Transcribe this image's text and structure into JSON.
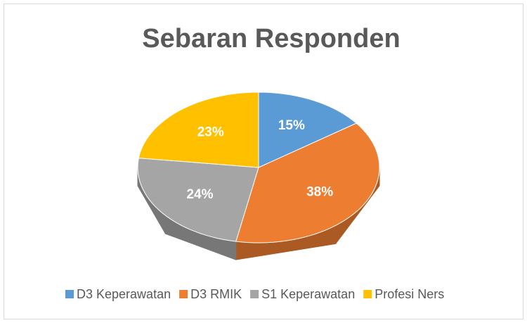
{
  "chart_data": {
    "type": "pie",
    "title": "Sebaran Responden",
    "categories": [
      "D3 Keperawatan",
      "D3 RMIK",
      "S1 Keperawatan",
      "Profesi Ners"
    ],
    "values": [
      15,
      38,
      24,
      23
    ],
    "value_labels": [
      "15%",
      "38%",
      "24%",
      "23%"
    ],
    "colors": [
      "#5b9bd5",
      "#ed7d31",
      "#a5a5a5",
      "#ffc000"
    ],
    "legend": "bottom"
  }
}
